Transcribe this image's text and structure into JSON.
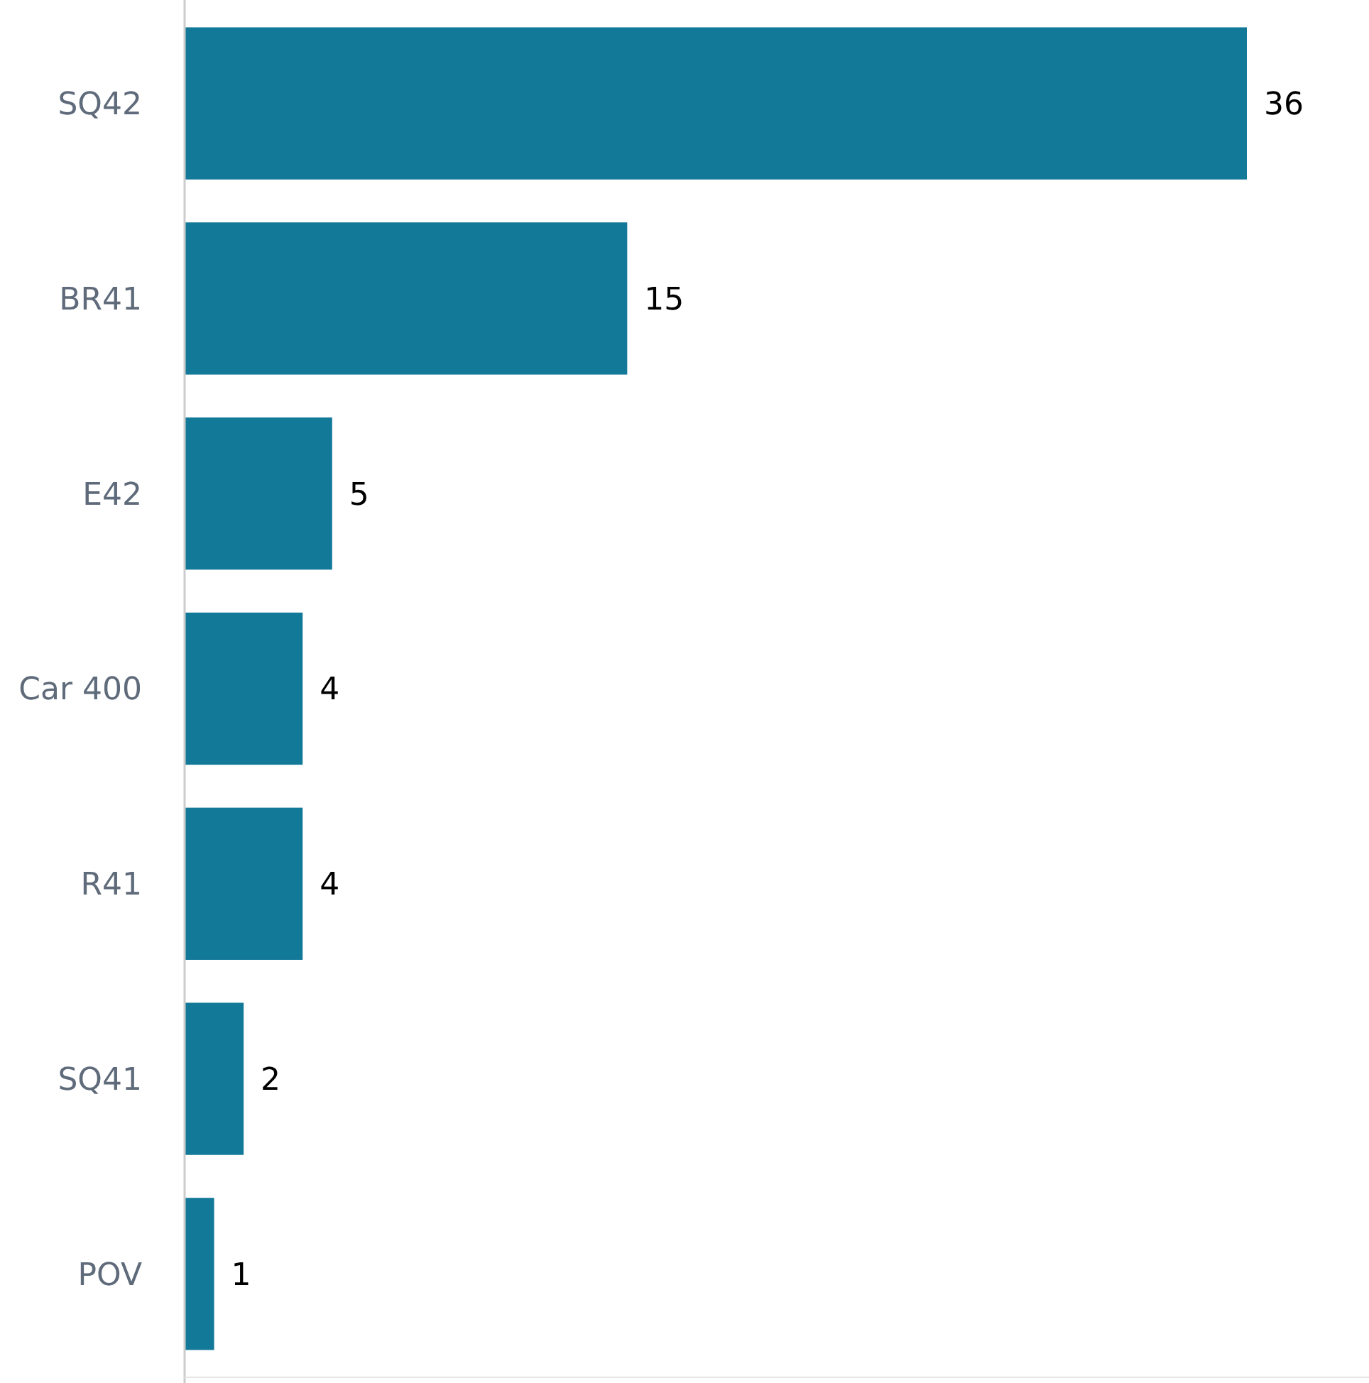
{
  "chart_data": {
    "type": "bar",
    "orientation": "horizontal",
    "categories": [
      "SQ42",
      "BR41",
      "E42",
      "Car 400",
      "R41",
      "SQ41",
      "POV"
    ],
    "values": [
      36,
      15,
      5,
      4,
      4,
      2,
      1
    ],
    "color": "#137999",
    "data_labels": true
  }
}
